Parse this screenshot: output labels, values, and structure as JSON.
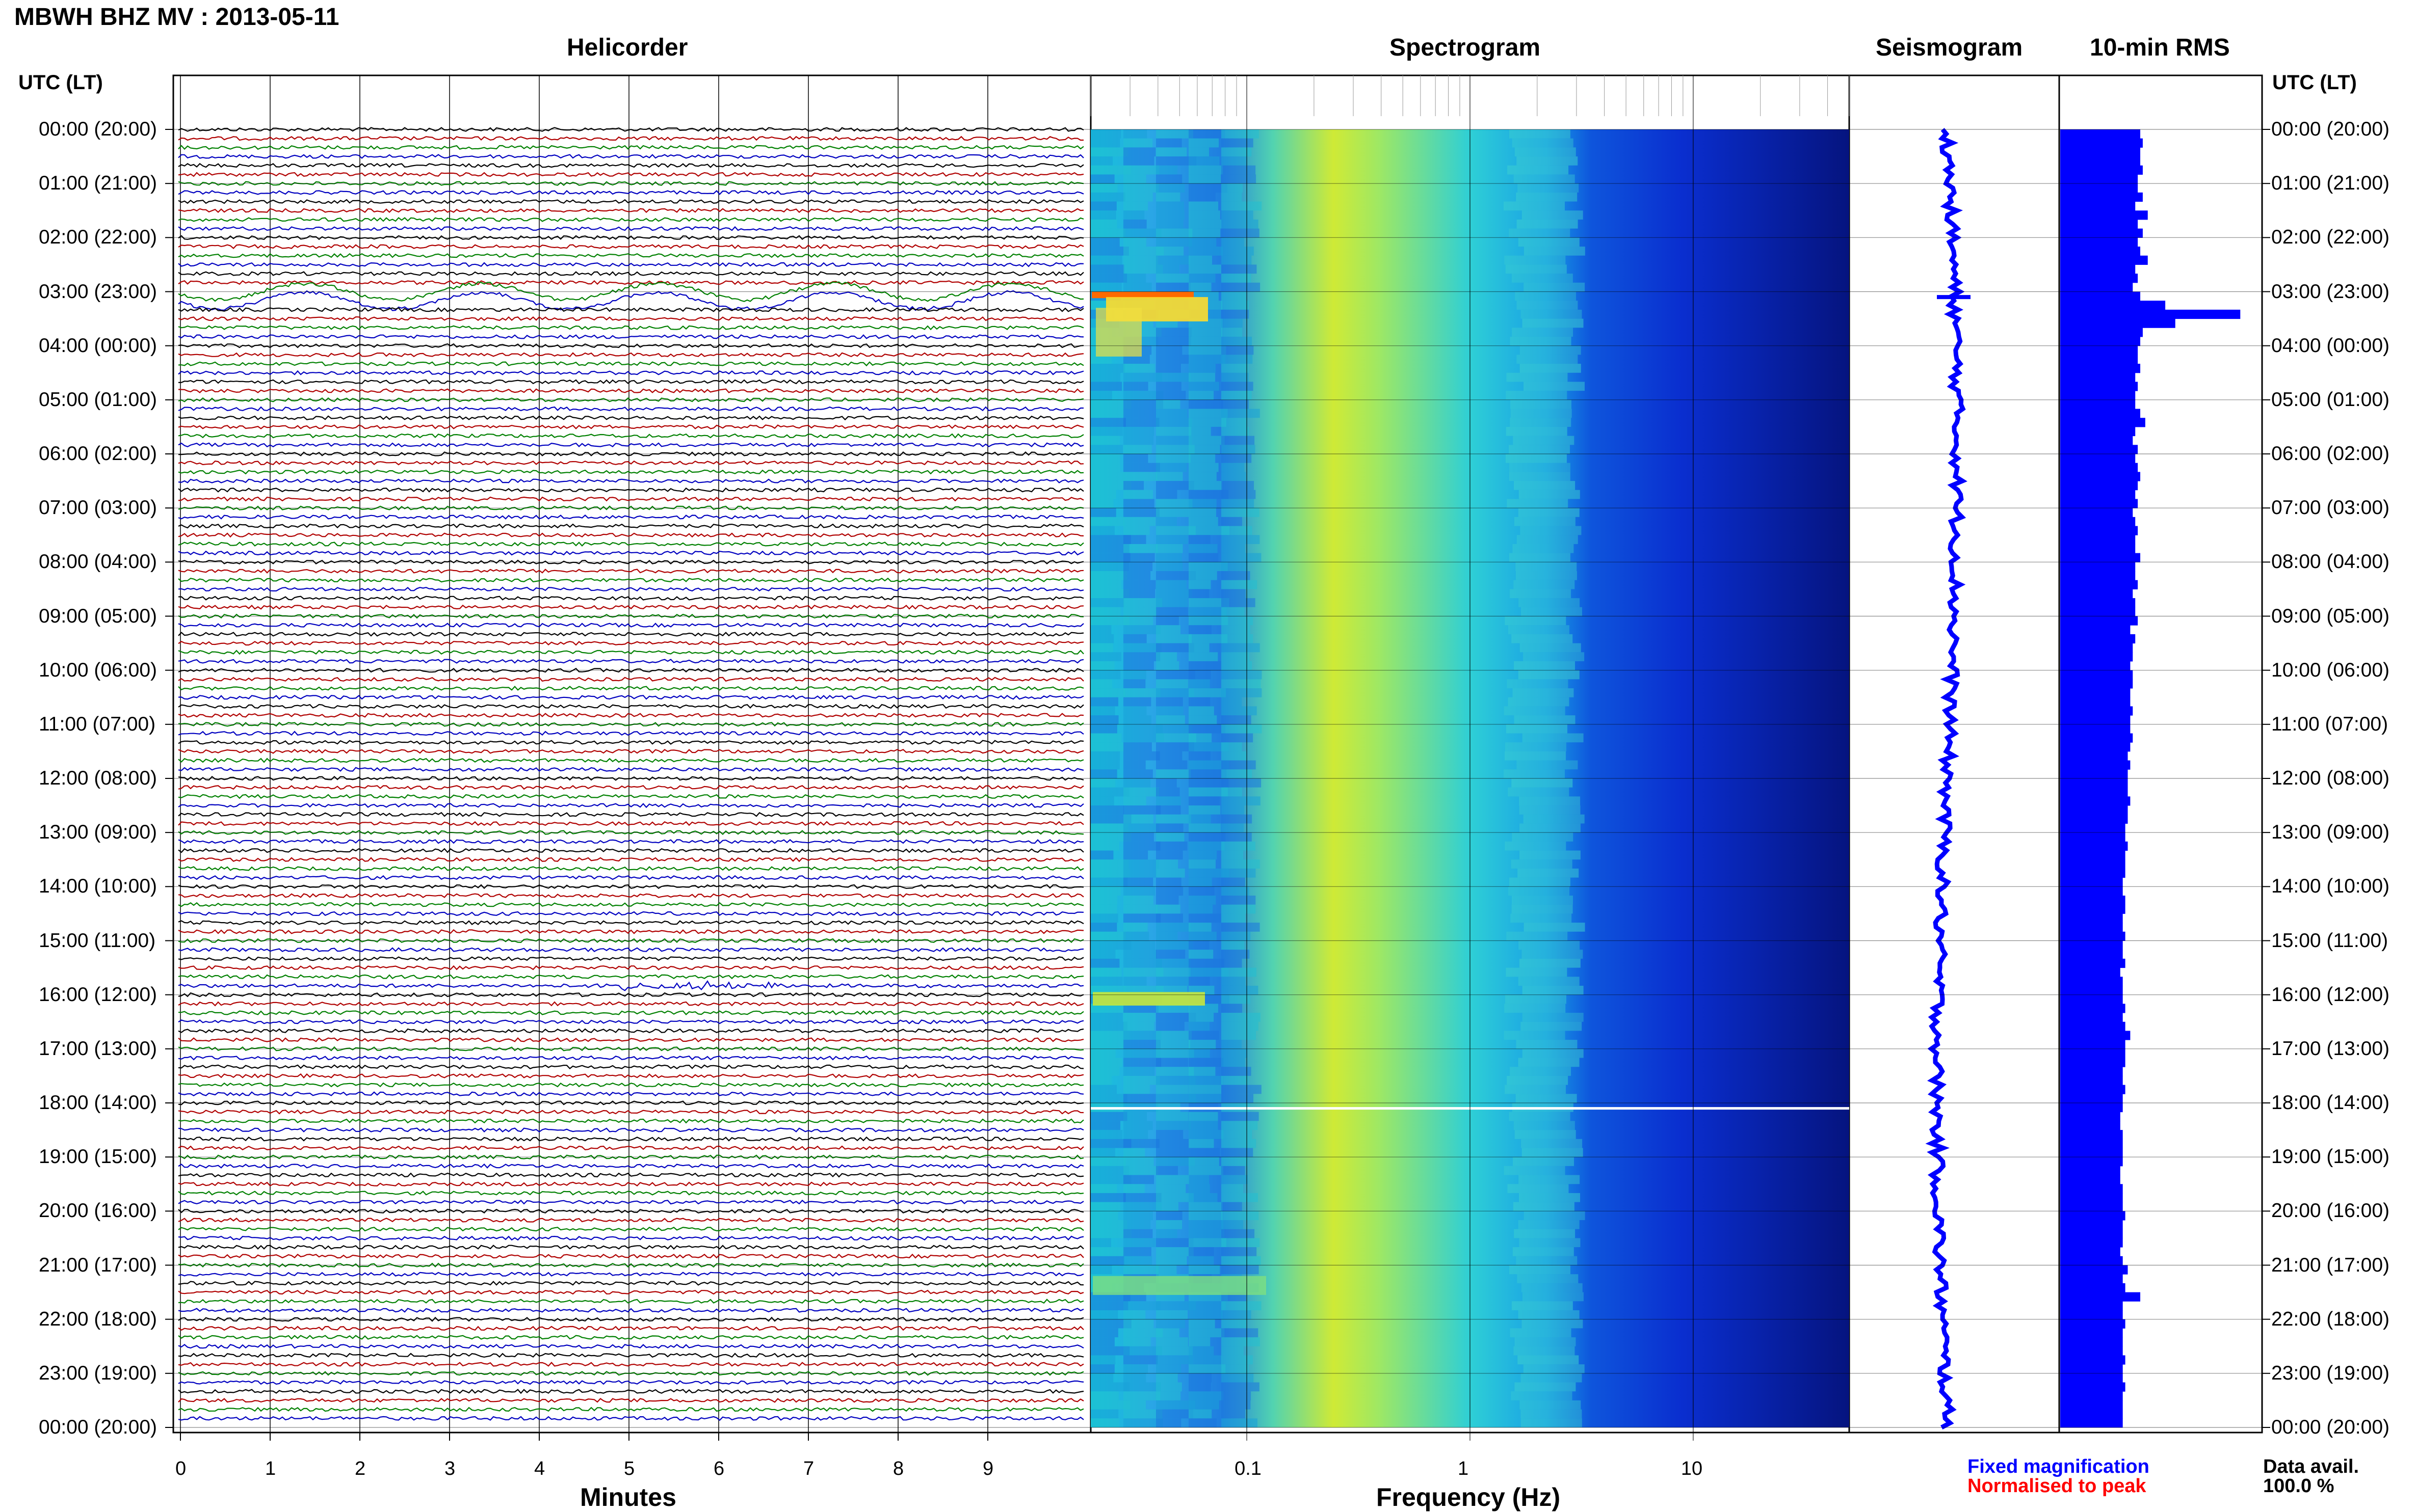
{
  "title": "MBWH BHZ MV : 2013-05-11",
  "panels": {
    "helicorder": "Helicorder",
    "spectrogram": "Spectrogram",
    "seismogram": "Seismogram",
    "rms": "10-min RMS"
  },
  "utc_header": "UTC (LT)",
  "hour_labels": [
    "00:00 (20:00)",
    "01:00 (21:00)",
    "02:00 (22:00)",
    "03:00 (23:00)",
    "04:00 (00:00)",
    "05:00 (01:00)",
    "06:00 (02:00)",
    "07:00 (03:00)",
    "08:00 (04:00)",
    "09:00 (05:00)",
    "10:00 (06:00)",
    "11:00 (07:00)",
    "12:00 (08:00)",
    "13:00 (09:00)",
    "14:00 (10:00)",
    "15:00 (11:00)",
    "16:00 (12:00)",
    "17:00 (13:00)",
    "18:00 (14:00)",
    "19:00 (15:00)",
    "20:00 (16:00)",
    "21:00 (17:00)",
    "22:00 (18:00)",
    "23:00 (19:00)",
    "00:00 (20:00)"
  ],
  "minutes_axis": {
    "label": "Minutes",
    "ticks": [
      "0",
      "1",
      "2",
      "3",
      "4",
      "5",
      "6",
      "7",
      "8",
      "9"
    ]
  },
  "frequency_axis": {
    "label": "Frequency (Hz)",
    "ticks": [
      "0.1",
      "1",
      "10"
    ],
    "scale": "log"
  },
  "legend": {
    "fixed": "Fixed magnification",
    "normalised": "Normalised to peak",
    "fixed_color": "#0000ff",
    "normalised_color": "#ff0000"
  },
  "availability": {
    "label": "Data avail.",
    "value": "100.0 %"
  },
  "colors": {
    "trace_cycle": [
      "#000000",
      "#b00000",
      "#008000",
      "#0000c0"
    ],
    "rms_bar": "#0000ff",
    "seismo": "#0000ff"
  },
  "chart_data": [
    {
      "type": "line",
      "title": "Helicorder",
      "xlabel": "Minutes",
      "xlim": [
        0,
        10
      ],
      "note_rows": "144 traces of 10 minutes each, 00:00 to 24:00 UTC",
      "events": [
        {
          "utc_row_hour": 3.0,
          "description": "large long-period oscillation"
        },
        {
          "utc_row_hour": 15.83,
          "description": "burst near minute 5-7"
        }
      ]
    },
    {
      "type": "heatmap",
      "title": "Spectrogram",
      "xlabel": "Frequency (Hz)",
      "x_scale": "log",
      "xlim": [
        0.02,
        50
      ],
      "y": "UTC hour 0-24"
    },
    {
      "type": "bar",
      "title": "10-min RMS",
      "orientation": "horizontal",
      "rms_per_10min": [
        0.32,
        0.33,
        0.32,
        0.32,
        0.33,
        0.31,
        0.31,
        0.33,
        0.3,
        0.35,
        0.31,
        0.33,
        0.31,
        0.32,
        0.35,
        0.3,
        0.31,
        0.29,
        0.32,
        0.42,
        0.72,
        0.46,
        0.33,
        0.32,
        0.31,
        0.31,
        0.32,
        0.3,
        0.31,
        0.3,
        0.3,
        0.32,
        0.34,
        0.3,
        0.29,
        0.31,
        0.3,
        0.31,
        0.32,
        0.31,
        0.3,
        0.31,
        0.29,
        0.3,
        0.31,
        0.3,
        0.3,
        0.32,
        0.3,
        0.3,
        0.31,
        0.29,
        0.3,
        0.3,
        0.31,
        0.28,
        0.3,
        0.29,
        0.29,
        0.28,
        0.29,
        0.29,
        0.28,
        0.28,
        0.29,
        0.28,
        0.28,
        0.29,
        0.28,
        0.27,
        0.28,
        0.27,
        0.27,
        0.27,
        0.28,
        0.27,
        0.27,
        0.26,
        0.26,
        0.27,
        0.26,
        0.26,
        0.26,
        0.25,
        0.25,
        0.26,
        0.26,
        0.25,
        0.25,
        0.26,
        0.25,
        0.25,
        0.26,
        0.24,
        0.25,
        0.25,
        0.25,
        0.26,
        0.25,
        0.26,
        0.28,
        0.26,
        0.26,
        0.26,
        0.25,
        0.25,
        0.26,
        0.25,
        0.25,
        0.24,
        0.24,
        0.25,
        0.25,
        0.25,
        0.25,
        0.24,
        0.24,
        0.25,
        0.25,
        0.25,
        0.26,
        0.25,
        0.25,
        0.25,
        0.24,
        0.25,
        0.27,
        0.25,
        0.26,
        0.32,
        0.25,
        0.25,
        0.26,
        0.25,
        0.25,
        0.25,
        0.26,
        0.25,
        0.25,
        0.26,
        0.25,
        0.25,
        0.25,
        0.25
      ]
    }
  ]
}
